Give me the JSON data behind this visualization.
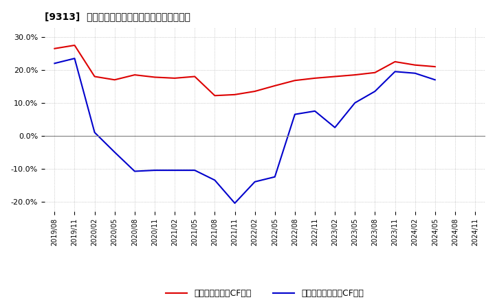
{
  "title": "[9313]  有利子負債キャッシュフロー比率の推移",
  "legend_red": "有利子負債営業CF比率",
  "legend_blue": "有利子負債フリーCF比率",
  "x_labels": [
    "2019/08",
    "2019/11",
    "2020/02",
    "2020/05",
    "2020/08",
    "2020/11",
    "2021/02",
    "2021/05",
    "2021/08",
    "2021/11",
    "2022/02",
    "2022/05",
    "2022/08",
    "2022/11",
    "2023/02",
    "2023/05",
    "2023/08",
    "2023/11",
    "2024/02",
    "2024/05",
    "2024/08",
    "2024/11"
  ],
  "red_values": [
    26.5,
    27.5,
    18.0,
    17.0,
    18.5,
    17.8,
    17.5,
    18.0,
    12.2,
    12.5,
    13.5,
    15.2,
    16.8,
    17.5,
    18.0,
    18.5,
    19.2,
    22.5,
    21.5,
    21.0,
    null,
    null
  ],
  "blue_values": [
    22.0,
    23.5,
    1.0,
    -5.0,
    -10.8,
    -10.5,
    -10.5,
    -10.5,
    -13.5,
    -20.5,
    -14.0,
    -12.5,
    6.5,
    7.5,
    2.5,
    10.0,
    13.5,
    19.5,
    19.0,
    17.0,
    null,
    null
  ],
  "ylim": [
    -23,
    33
  ],
  "yticks": [
    -20.0,
    -10.0,
    0.0,
    10.0,
    20.0,
    30.0
  ],
  "ytick_labels": [
    "-20.0%",
    "-10.0%",
    "0.0%",
    "10.0%",
    "20.0%",
    "30.0%"
  ],
  "red_color": "#dd0000",
  "blue_color": "#0000cc",
  "zero_line_color": "#888888",
  "grid_color": "#aaaaaa",
  "bg_color": "#ffffff",
  "plot_bg_color": "#ffffff"
}
